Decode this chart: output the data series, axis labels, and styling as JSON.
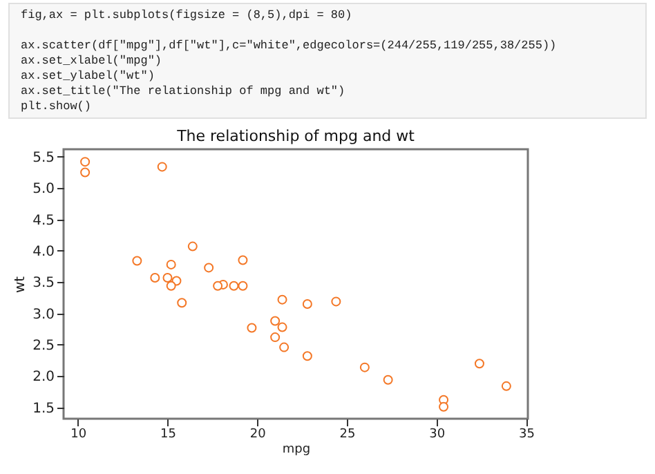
{
  "chart_data": {
    "type": "scatter",
    "title": "The relationship of mpg and wt",
    "xlabel": "mpg",
    "ylabel": "wt",
    "annotations": [
      "fig,ax = plt.subplots(figsize = (8,5),dpi = 80)",
      "ax.scatter(df[\"mpg\"],df[\"wt\"],c=\"white\",edgecolors=(244/255,119/255,38/255))",
      "ax.set_xlabel(\"mpg\")",
      "ax.set_ylabel(\"wt\")",
      "ax.set_title(\"The relationship of mpg and wt\")",
      "plt.show()"
    ],
    "x": [
      21.0,
      21.0,
      22.8,
      21.4,
      18.7,
      18.1,
      14.3,
      24.4,
      22.8,
      19.2,
      17.8,
      16.4,
      17.3,
      15.2,
      10.4,
      10.4,
      14.7,
      32.4,
      30.4,
      33.9,
      21.5,
      15.5,
      15.2,
      13.3,
      19.2,
      27.3,
      26.0,
      30.4,
      15.8,
      19.7,
      15.0,
      21.4
    ],
    "series": [
      {
        "color": "#f47726",
        "values": [
          2.62,
          2.88,
          2.32,
          3.22,
          3.44,
          3.46,
          3.57,
          3.19,
          3.15,
          3.44,
          3.44,
          4.07,
          3.73,
          3.78,
          5.25,
          5.42,
          5.34,
          2.2,
          1.62,
          1.84,
          2.46,
          3.52,
          3.44,
          3.84,
          3.85,
          1.94,
          2.14,
          1.51,
          3.17,
          2.77,
          3.57,
          2.78
        ]
      }
    ],
    "marker": "circle",
    "xlim": [
      9.2,
      35.1
    ],
    "ylim": [
      1.32,
      5.62
    ],
    "xticks": [
      10,
      15,
      20,
      25,
      30,
      35
    ],
    "yticks": [
      {
        "value": 1.5,
        "label": "1.5"
      },
      {
        "value": 2,
        "label": "2.0"
      },
      {
        "value": 2.5,
        "label": "2.5"
      },
      {
        "value": 3,
        "label": "3.0"
      },
      {
        "value": 3.5,
        "label": "3.5"
      },
      {
        "value": 4,
        "label": "4.0"
      },
      {
        "value": 4.5,
        "label": "4.5"
      },
      {
        "value": 5,
        "label": "5.0"
      },
      {
        "value": 5.5,
        "label": "5.5"
      }
    ]
  }
}
